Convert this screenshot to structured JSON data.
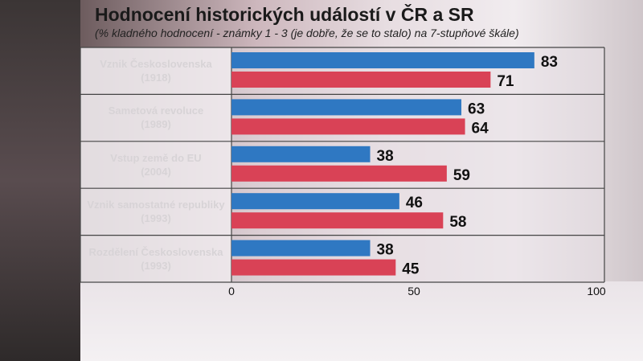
{
  "title": "Hodnocení historických událostí v ČR a SR",
  "subtitle": "(% kladného hodnocení - známky 1 - 3 (je dobře, že se to stalo) na 7-stupňové škále)",
  "colors": {
    "cz": "#2f78c2",
    "sk": "#d94256",
    "grid": "#444444"
  },
  "categories": [
    {
      "line1": "Vznik Československa",
      "line2": "(1918)"
    },
    {
      "line1": "Sametová revoluce",
      "line2": "(1989)"
    },
    {
      "line1": "Vstup země do EU",
      "line2": "(2004)"
    },
    {
      "line1": "Vznik samostatné republiky",
      "line2": "(1993)"
    },
    {
      "line1": "Rozdělení Československa",
      "line2": "(1993)"
    }
  ],
  "chart_data": {
    "type": "bar",
    "orientation": "horizontal",
    "categories": [
      "Vznik Československa (1918)",
      "Sametová revoluce (1989)",
      "Vstup země do EU (2004)",
      "Vznik samostatné republiky (1993)",
      "Rozdělení Československa (1993)"
    ],
    "series": [
      {
        "values": [
          83,
          63,
          38,
          46,
          38
        ]
      },
      {
        "values": [
          71,
          64,
          59,
          58,
          45
        ]
      }
    ],
    "xlim": [
      0,
      100
    ],
    "xticks": [
      "0",
      "50",
      "100"
    ],
    "grid": false
  }
}
